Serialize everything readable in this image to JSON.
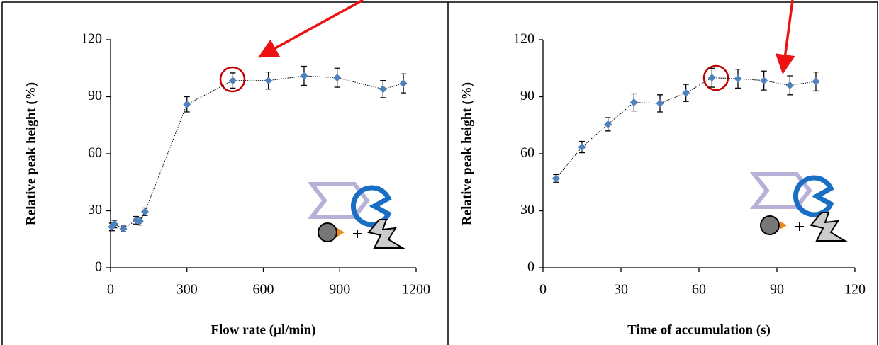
{
  "chart_data": [
    {
      "type": "scatter",
      "x_label": "Flow rate (µl/min)",
      "y_label": "Relative peak height  (%)",
      "color": "#4f81bd",
      "x": [
        5,
        15,
        50,
        100,
        115,
        135,
        300,
        480,
        620,
        760,
        890,
        1070,
        1150
      ],
      "values": [
        21.5,
        23,
        20.5,
        25,
        24.5,
        29.5,
        86,
        98.5,
        98.5,
        101,
        100,
        94,
        97
      ],
      "errors": [
        2,
        2,
        1.5,
        2,
        2,
        2,
        4,
        4,
        4.5,
        5,
        5,
        4.5,
        5
      ],
      "xlim": [
        0,
        1200
      ],
      "xticks": [
        0,
        300,
        600,
        900,
        1200
      ],
      "ylim": [
        0,
        120
      ],
      "yticks": [
        0,
        30,
        60,
        90,
        120
      ]
    },
    {
      "type": "scatter",
      "x_label": "Time of accumulation (s)",
      "y_label": "Relative peak height (%)",
      "color": "#4f81bd",
      "x": [
        5,
        15,
        25,
        35,
        45,
        55,
        65,
        75,
        85,
        95,
        105
      ],
      "values": [
        47,
        63.5,
        75.5,
        87,
        86.5,
        92,
        100,
        99.5,
        98.5,
        96,
        98
      ],
      "errors": [
        2,
        3,
        3.5,
        4.5,
        4.5,
        4.5,
        5,
        5,
        5,
        5,
        5
      ],
      "xlim": [
        0,
        120
      ],
      "xticks": [
        0,
        30,
        60,
        90,
        120
      ],
      "ylim": [
        0,
        120
      ],
      "yticks": [
        0,
        30,
        60,
        90,
        120
      ]
    }
  ]
}
